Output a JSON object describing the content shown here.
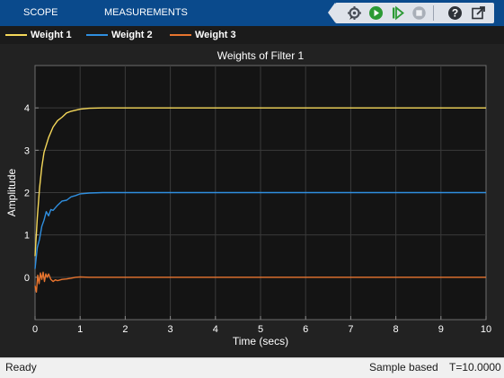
{
  "toolstrip": {
    "tabs": [
      {
        "label": "SCOPE"
      },
      {
        "label": "MEASUREMENTS"
      }
    ],
    "buttons": [
      "settings-icon",
      "run-icon",
      "step-forward-icon",
      "stop-icon",
      "help-icon",
      "undock-icon"
    ],
    "accent": "#0a4a8c"
  },
  "legend": {
    "items": [
      {
        "label": "Weight 1",
        "color": "#f5d85a"
      },
      {
        "label": "Weight 2",
        "color": "#2f8fe0"
      },
      {
        "label": "Weight 3",
        "color": "#e8742e"
      }
    ]
  },
  "status": {
    "left": "Ready",
    "mode": "Sample based",
    "time": "T=10.0000"
  },
  "chart_data": {
    "type": "line",
    "title": "Weights of Filter 1",
    "xlabel": "Time (secs)",
    "ylabel": "Amplitude",
    "xlim": [
      0,
      10
    ],
    "ylim": [
      -1,
      5
    ],
    "xticks": [
      "0",
      "1",
      "2",
      "3",
      "4",
      "5",
      "6",
      "7",
      "8",
      "9",
      "10"
    ],
    "yticks": [
      "0",
      "1",
      "2",
      "3",
      "4"
    ],
    "grid": true,
    "series": [
      {
        "name": "Weight 1",
        "color": "#f5d85a",
        "points": [
          [
            0,
            0.5
          ],
          [
            0.05,
            1.4
          ],
          [
            0.1,
            2.1
          ],
          [
            0.15,
            2.6
          ],
          [
            0.2,
            2.95
          ],
          [
            0.3,
            3.3
          ],
          [
            0.4,
            3.55
          ],
          [
            0.5,
            3.7
          ],
          [
            0.6,
            3.78
          ],
          [
            0.7,
            3.88
          ],
          [
            0.8,
            3.92
          ],
          [
            1.0,
            3.97
          ],
          [
            1.2,
            3.99
          ],
          [
            1.5,
            4.0
          ],
          [
            2,
            4.0
          ],
          [
            5,
            4.0
          ],
          [
            10,
            4.0
          ]
        ]
      },
      {
        "name": "Weight 2",
        "color": "#2f8fe0",
        "points": [
          [
            0,
            0.2
          ],
          [
            0.05,
            0.7
          ],
          [
            0.1,
            0.9
          ],
          [
            0.15,
            1.2
          ],
          [
            0.2,
            1.35
          ],
          [
            0.25,
            1.55
          ],
          [
            0.3,
            1.45
          ],
          [
            0.35,
            1.6
          ],
          [
            0.4,
            1.58
          ],
          [
            0.5,
            1.7
          ],
          [
            0.6,
            1.8
          ],
          [
            0.7,
            1.82
          ],
          [
            0.8,
            1.9
          ],
          [
            0.9,
            1.93
          ],
          [
            1.0,
            1.97
          ],
          [
            1.2,
            1.99
          ],
          [
            1.5,
            2.0
          ],
          [
            2,
            2.0
          ],
          [
            5,
            2.0
          ],
          [
            10,
            2.0
          ]
        ]
      },
      {
        "name": "Weight 3",
        "color": "#e8742e",
        "points": [
          [
            0,
            -0.2
          ],
          [
            0.03,
            -0.35
          ],
          [
            0.06,
            0.05
          ],
          [
            0.09,
            -0.15
          ],
          [
            0.12,
            0.1
          ],
          [
            0.15,
            -0.05
          ],
          [
            0.18,
            0.12
          ],
          [
            0.21,
            -0.1
          ],
          [
            0.24,
            0.08
          ],
          [
            0.27,
            0.0
          ],
          [
            0.3,
            0.08
          ],
          [
            0.35,
            -0.05
          ],
          [
            0.4,
            -0.1
          ],
          [
            0.45,
            -0.06
          ],
          [
            0.5,
            -0.08
          ],
          [
            0.6,
            -0.05
          ],
          [
            0.7,
            -0.04
          ],
          [
            0.8,
            -0.02
          ],
          [
            0.9,
            0.0
          ],
          [
            1.0,
            0.01
          ],
          [
            1.2,
            0.0
          ],
          [
            2,
            0.0
          ],
          [
            5,
            0.0
          ],
          [
            10,
            0.0
          ]
        ]
      }
    ]
  }
}
